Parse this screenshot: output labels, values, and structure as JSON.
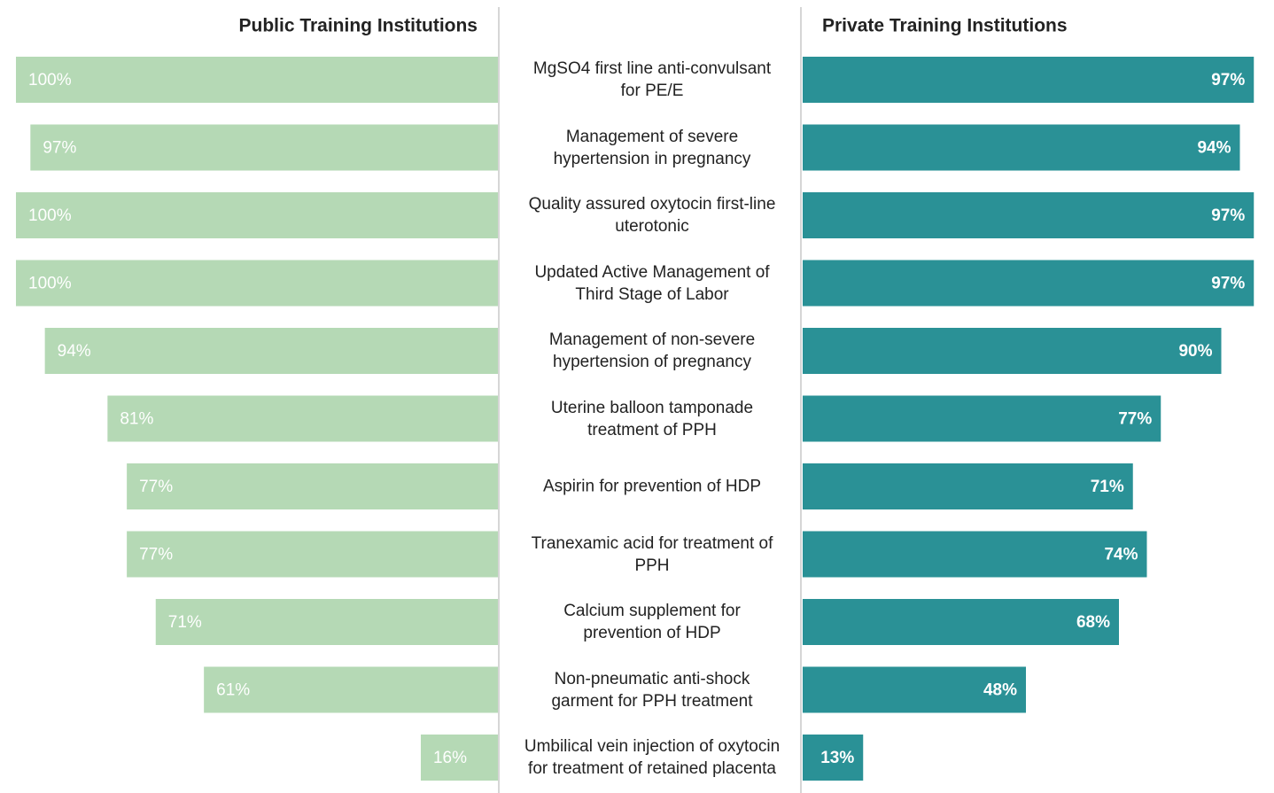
{
  "chart_data": {
    "type": "butterfly-bar",
    "categories": [
      "MgSO4 first line anti-convulsant for PE/E",
      "Management of severe hypertension in pregnancy",
      "Quality assured oxytocin first-line uterotonic",
      "Updated Active Management of Third Stage of Labor",
      "Management of non-severe hypertension of pregnancy",
      "Uterine balloon tamponade treatment of PPH",
      "Aspirin for prevention of HDP",
      "Tranexamic acid for treatment of PPH",
      "Calcium supplement for prevention of HDP",
      "Non-pneumatic anti-shock garment for PPH treatment",
      "Umbilical vein injection of oxytocin for treatment of retained placenta"
    ],
    "xlim": [
      0,
      100
    ],
    "series": [
      {
        "name": "Public Training Institutions",
        "color": "#b5d9b5",
        "side": "left",
        "values": [
          100,
          97,
          100,
          100,
          94,
          81,
          77,
          77,
          71,
          61,
          16
        ],
        "value_labels": [
          "100%",
          "97%",
          "100%",
          "100%",
          "94%",
          "81%",
          "77%",
          "77%",
          "71%",
          "61%",
          "16%"
        ]
      },
      {
        "name": "Private Training Institutions",
        "color": "#2a9196",
        "side": "right",
        "values": [
          97,
          94,
          97,
          97,
          90,
          77,
          71,
          74,
          68,
          48,
          13
        ],
        "value_labels": [
          "97%",
          "94%",
          "97%",
          "97%",
          "90%",
          "77%",
          "71%",
          "74%",
          "68%",
          "48%",
          "13%"
        ]
      }
    ]
  }
}
